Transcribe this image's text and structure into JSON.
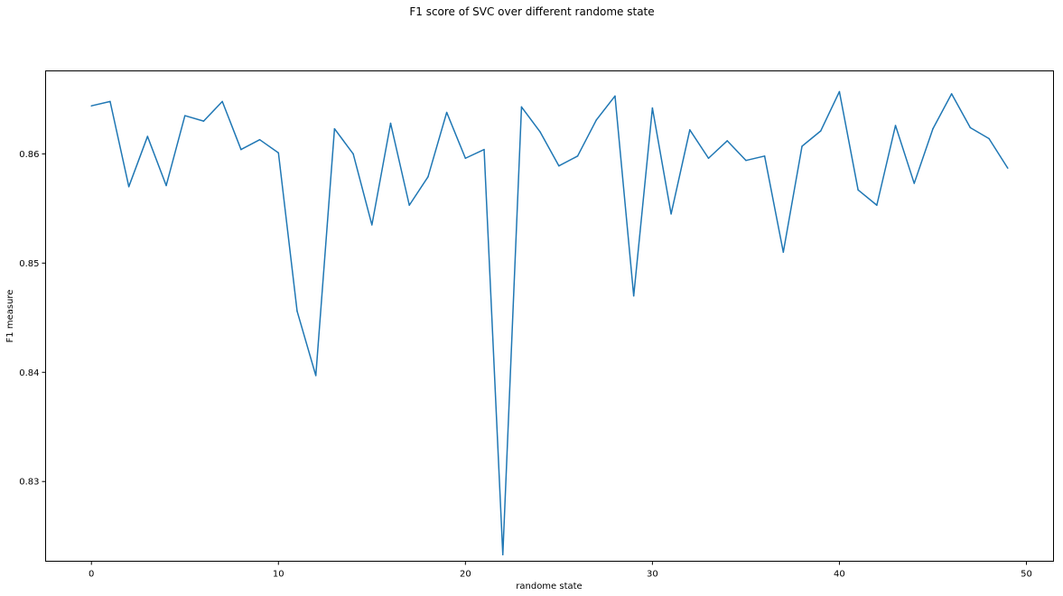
{
  "chart_data": {
    "type": "line",
    "title": "F1 score of SVC over different randome state",
    "xlabel": "randome state",
    "ylabel": "F1 measure",
    "xlim": [
      -2.45,
      51.45
    ],
    "ylim": [
      0.8227,
      0.8676
    ],
    "xticks": [
      0,
      10,
      20,
      30,
      40,
      50
    ],
    "xtick_labels": [
      "0",
      "10",
      "20",
      "30",
      "40",
      "50"
    ],
    "yticks": [
      0.83,
      0.84,
      0.85,
      0.86
    ],
    "ytick_labels": [
      "0.83",
      "0.84",
      "0.85",
      "0.86"
    ],
    "grid": false,
    "series": [
      {
        "color": "#1f77b4",
        "x": [
          0,
          1,
          2,
          3,
          4,
          5,
          6,
          7,
          8,
          9,
          10,
          11,
          12,
          13,
          14,
          15,
          16,
          17,
          18,
          19,
          20,
          21,
          22,
          23,
          24,
          25,
          26,
          27,
          28,
          29,
          30,
          31,
          32,
          33,
          34,
          35,
          36,
          37,
          38,
          39,
          40,
          41,
          42,
          43,
          44,
          45,
          46,
          47,
          48,
          49
        ],
        "y": [
          0.8644,
          0.8648,
          0.857,
          0.8616,
          0.8571,
          0.8635,
          0.863,
          0.8648,
          0.8604,
          0.8613,
          0.8601,
          0.8456,
          0.8397,
          0.8623,
          0.86,
          0.8535,
          0.8628,
          0.8553,
          0.8579,
          0.8638,
          0.8596,
          0.8604,
          0.8233,
          0.8643,
          0.862,
          0.8589,
          0.8598,
          0.8631,
          0.8653,
          0.847,
          0.8642,
          0.8545,
          0.8622,
          0.8596,
          0.8612,
          0.8594,
          0.8598,
          0.851,
          0.8607,
          0.8621,
          0.8657,
          0.8567,
          0.8553,
          0.8626,
          0.8573,
          0.8623,
          0.8655,
          0.8624,
          0.8614,
          0.8587
        ]
      }
    ]
  }
}
